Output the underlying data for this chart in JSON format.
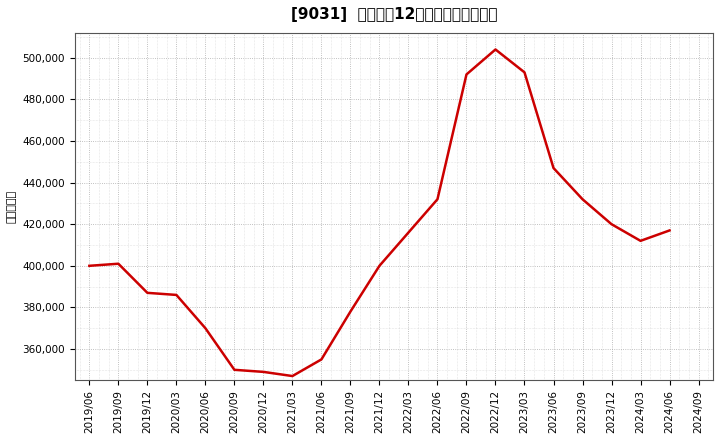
{
  "title": "[9031]  売上高の12か月移動合計の推移",
  "ylabel": "（百万円）",
  "line_color": "#cc0000",
  "background_color": "#ffffff",
  "plot_bg_color": "#ffffff",
  "grid_color": "#999999",
  "dates": [
    "2019/06",
    "2019/09",
    "2019/12",
    "2020/03",
    "2020/06",
    "2020/09",
    "2020/12",
    "2021/03",
    "2021/06",
    "2021/09",
    "2021/12",
    "2022/03",
    "2022/06",
    "2022/09",
    "2022/12",
    "2023/03",
    "2023/06",
    "2023/09",
    "2023/12",
    "2024/03",
    "2024/06",
    "2024/09"
  ],
  "values": [
    400000,
    401000,
    387000,
    386000,
    370000,
    350000,
    349000,
    347000,
    355000,
    378000,
    400000,
    416000,
    432000,
    492000,
    504000,
    493000,
    447000,
    432000,
    420000,
    412000,
    417000,
    null
  ],
  "ylim": [
    345000,
    512000
  ],
  "yticks": [
    360000,
    380000,
    400000,
    420000,
    440000,
    460000,
    480000,
    500000
  ],
  "title_fontsize": 11,
  "tick_fontsize": 7.5,
  "ylabel_fontsize": 8,
  "line_width": 1.8
}
